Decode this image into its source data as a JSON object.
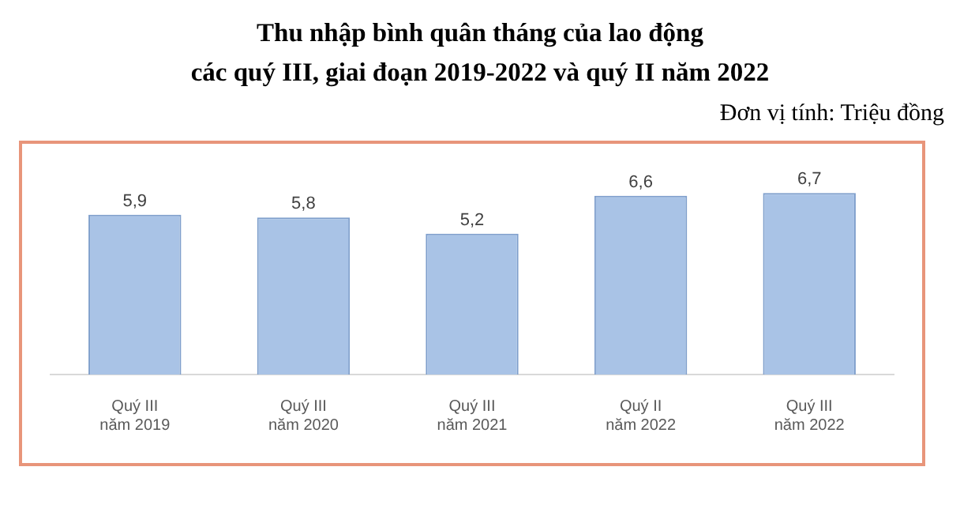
{
  "chart_data": {
    "type": "bar",
    "title": "Thu nhập bình quân tháng của lao động\ncác quý III, giai đoạn 2019-2022 và quý II năm 2022",
    "annotations": [
      "Đơn vị tính: Triệu đồng"
    ],
    "categories": [
      "Quý III\nnăm 2019",
      "Quý III\nnăm 2020",
      "Quý III\nnăm 2021",
      "Quý II\nnăm 2022",
      "Quý III\nnăm 2022"
    ],
    "values": [
      5.9,
      5.8,
      5.2,
      6.6,
      6.7
    ],
    "value_labels": [
      "5,9",
      "5,8",
      "5,2",
      "6,6",
      "6,7"
    ],
    "color": "#a9c3e6",
    "legend": false,
    "grid": false
  }
}
